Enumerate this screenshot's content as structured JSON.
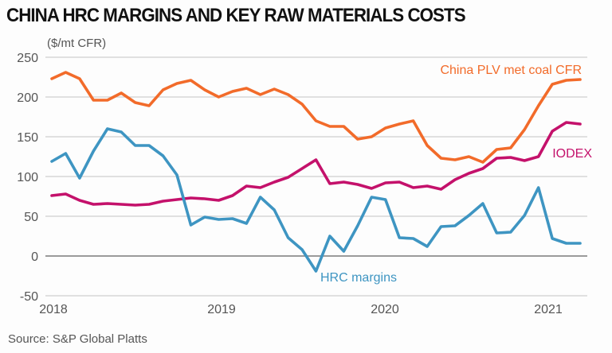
{
  "chart_data": {
    "type": "line",
    "title": "CHINA HRC MARGINS AND KEY RAW MATERIALS COSTS",
    "ylabel": "($/mt CFR)",
    "source": "Source: S&P Global Platts",
    "ylim": [
      -50,
      250
    ],
    "yticks": [
      "250",
      "200",
      "150",
      "100",
      "50",
      "0",
      "-50"
    ],
    "yticks_values": [
      250,
      200,
      150,
      100,
      50,
      0,
      -50
    ],
    "xticks": [
      "2018",
      "2019",
      "2020",
      "2021"
    ],
    "x_start": "2018-01",
    "x_end": "2021-03",
    "grid": true,
    "series": [
      {
        "name": "China PLV met coal CFR",
        "color": "#f26b2a",
        "values": [
          223,
          231,
          223,
          196,
          196,
          205,
          193,
          189,
          209,
          217,
          221,
          209,
          200,
          207,
          211,
          203,
          210,
          203,
          191,
          170,
          163,
          163,
          147,
          150,
          161,
          166,
          170,
          139,
          123,
          121,
          125,
          118,
          134,
          136,
          159,
          189,
          216,
          221,
          222
        ]
      },
      {
        "name": "IODEX",
        "color": "#c4116b",
        "values": [
          76,
          78,
          70,
          65,
          66,
          65,
          64,
          65,
          69,
          71,
          73,
          72,
          70,
          76,
          88,
          86,
          93,
          99,
          110,
          121,
          91,
          93,
          90,
          85,
          92,
          93,
          86,
          88,
          84,
          96,
          104,
          110,
          123,
          124,
          120,
          125,
          157,
          168,
          166
        ]
      },
      {
        "name": "HRC margins",
        "color": "#3e95c2",
        "values": [
          119,
          129,
          98,
          132,
          160,
          156,
          139,
          139,
          126,
          102,
          39,
          49,
          46,
          47,
          41,
          74,
          58,
          23,
          8,
          -19,
          25,
          6,
          38,
          74,
          71,
          23,
          22,
          12,
          37,
          38,
          51,
          66,
          29,
          30,
          51,
          86,
          22,
          16,
          16
        ]
      }
    ]
  }
}
